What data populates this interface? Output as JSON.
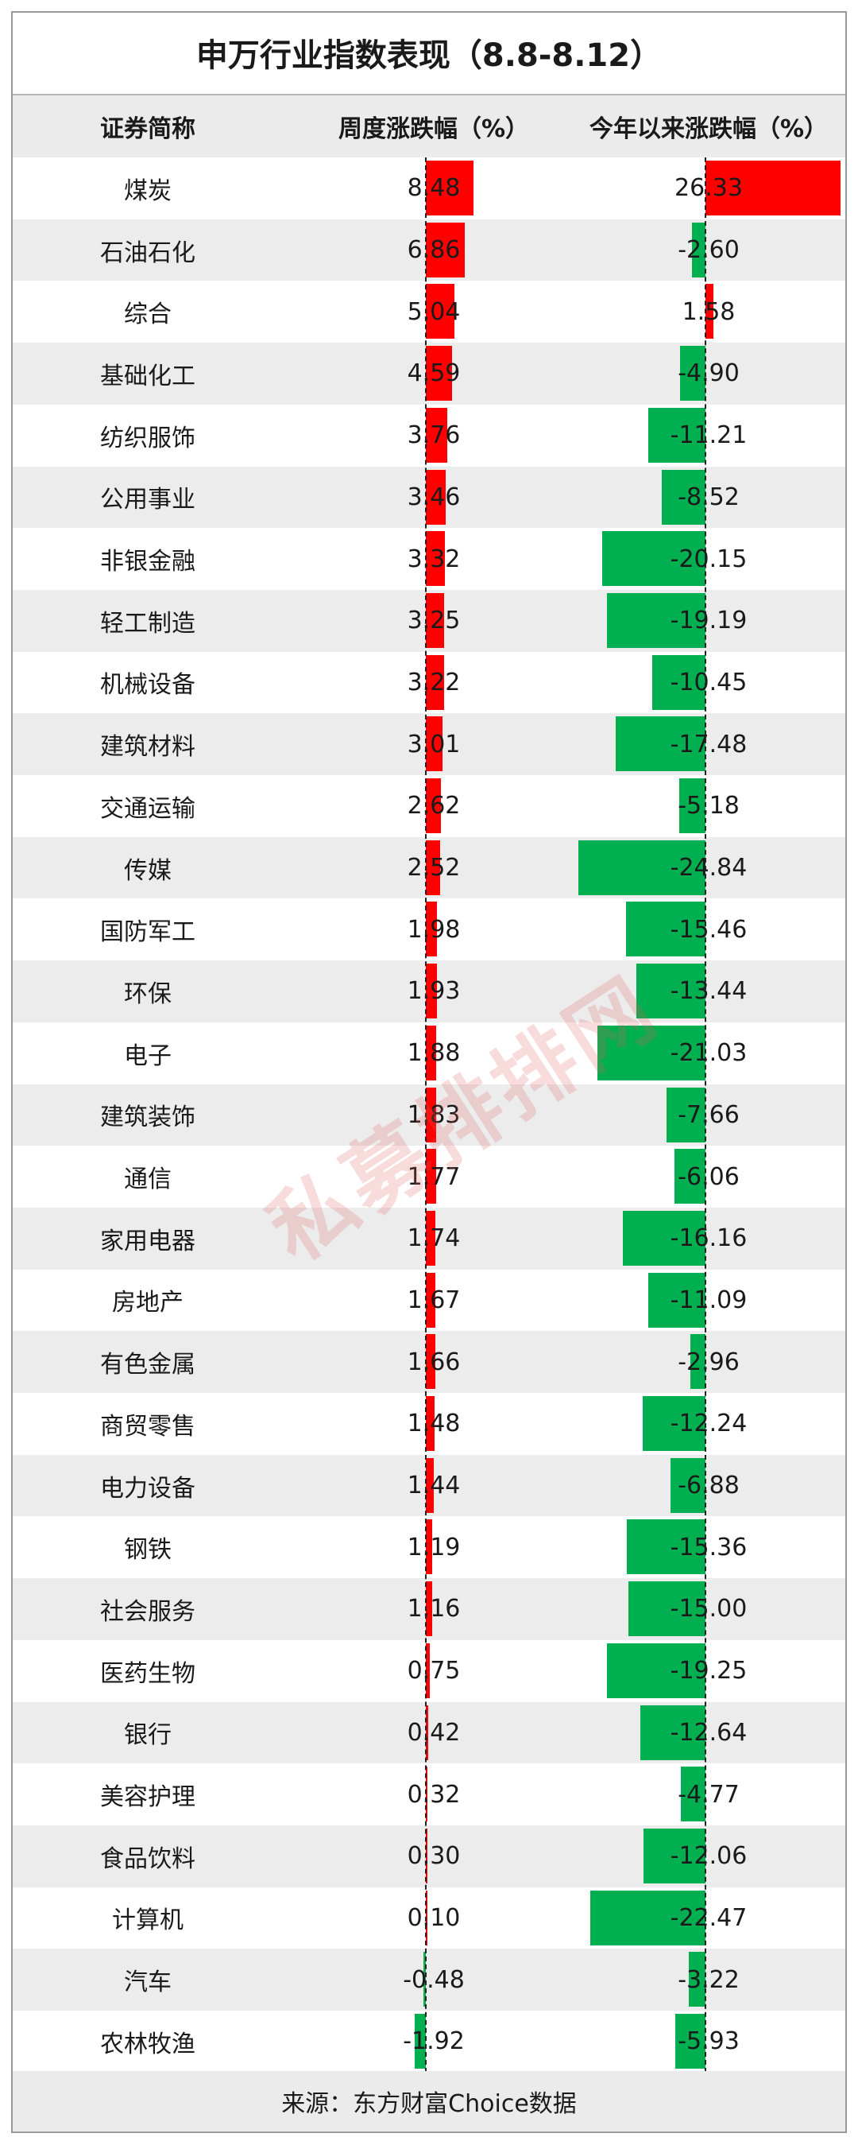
{
  "chart_data": {
    "type": "table",
    "title": "申万行业指数表现（8.8-8.12）",
    "columns": [
      "证券简称",
      "周度涨跌幅（%）",
      "今年以来涨跌幅（%）"
    ],
    "colors": {
      "positive": "#ff0000",
      "negative": "#00b050"
    },
    "rows": [
      {
        "name": "煤炭",
        "weekly": "8.48",
        "ytd": "26.33"
      },
      {
        "name": "石油石化",
        "weekly": "6.86",
        "ytd": "-2.60"
      },
      {
        "name": "综合",
        "weekly": "5.04",
        "ytd": "1.58"
      },
      {
        "name": "基础化工",
        "weekly": "4.59",
        "ytd": "-4.90"
      },
      {
        "name": "纺织服饰",
        "weekly": "3.76",
        "ytd": "-11.21"
      },
      {
        "name": "公用事业",
        "weekly": "3.46",
        "ytd": "-8.52"
      },
      {
        "name": "非银金融",
        "weekly": "3.32",
        "ytd": "-20.15"
      },
      {
        "name": "轻工制造",
        "weekly": "3.25",
        "ytd": "-19.19"
      },
      {
        "name": "机械设备",
        "weekly": "3.22",
        "ytd": "-10.45"
      },
      {
        "name": "建筑材料",
        "weekly": "3.01",
        "ytd": "-17.48"
      },
      {
        "name": "交通运输",
        "weekly": "2.62",
        "ytd": "-5.18"
      },
      {
        "name": "传媒",
        "weekly": "2.52",
        "ytd": "-24.84"
      },
      {
        "name": "国防军工",
        "weekly": "1.98",
        "ytd": "-15.46"
      },
      {
        "name": "环保",
        "weekly": "1.93",
        "ytd": "-13.44"
      },
      {
        "name": "电子",
        "weekly": "1.88",
        "ytd": "-21.03"
      },
      {
        "name": "建筑装饰",
        "weekly": "1.83",
        "ytd": "-7.66"
      },
      {
        "name": "通信",
        "weekly": "1.77",
        "ytd": "-6.06"
      },
      {
        "name": "家用电器",
        "weekly": "1.74",
        "ytd": "-16.16"
      },
      {
        "name": "房地产",
        "weekly": "1.67",
        "ytd": "-11.09"
      },
      {
        "name": "有色金属",
        "weekly": "1.66",
        "ytd": "-2.96"
      },
      {
        "name": "商贸零售",
        "weekly": "1.48",
        "ytd": "-12.24"
      },
      {
        "name": "电力设备",
        "weekly": "1.44",
        "ytd": "-6.88"
      },
      {
        "name": "钢铁",
        "weekly": "1.19",
        "ytd": "-15.36"
      },
      {
        "name": "社会服务",
        "weekly": "1.16",
        "ytd": "-15.00"
      },
      {
        "name": "医药生物",
        "weekly": "0.75",
        "ytd": "-19.25"
      },
      {
        "name": "银行",
        "weekly": "0.42",
        "ytd": "-12.64"
      },
      {
        "name": "美容护理",
        "weekly": "0.32",
        "ytd": "-4.77"
      },
      {
        "name": "食品饮料",
        "weekly": "0.30",
        "ytd": "-12.06"
      },
      {
        "name": "计算机",
        "weekly": "0.10",
        "ytd": "-22.47"
      },
      {
        "name": "汽车",
        "weekly": "-0.48",
        "ytd": "-3.22"
      },
      {
        "name": "农林牧渔",
        "weekly": "-1.92",
        "ytd": "-5.93"
      }
    ],
    "source": "来源：东方财富Choice数据",
    "watermark": "私募排排网"
  }
}
